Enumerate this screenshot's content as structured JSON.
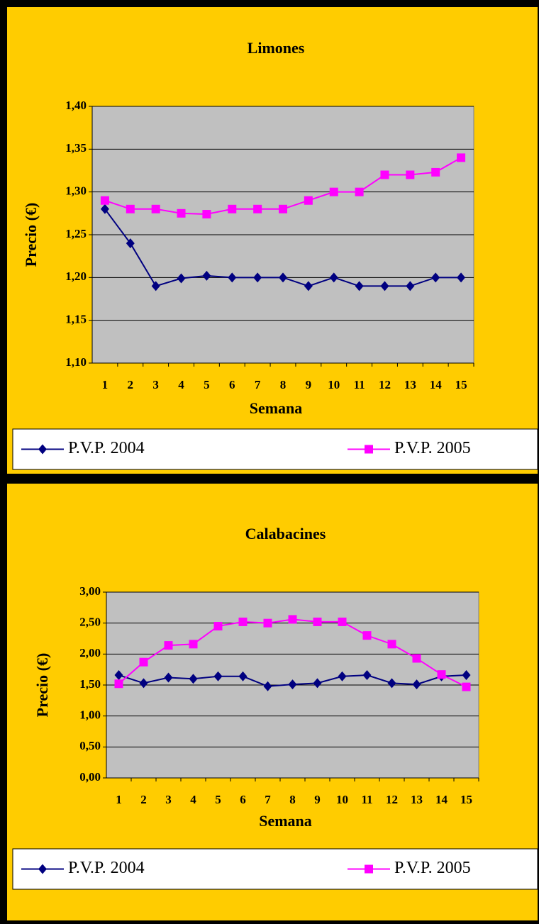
{
  "chart_data": [
    {
      "type": "line",
      "title": "Limones",
      "x_label": "Semana",
      "y_label": "Precio (€)",
      "categories": [
        "1",
        "2",
        "3",
        "4",
        "5",
        "6",
        "7",
        "8",
        "9",
        "10",
        "11",
        "12",
        "13",
        "14",
        "15"
      ],
      "series": [
        {
          "name": "P.V.P. 2004",
          "color": "#000080",
          "marker": "diamond",
          "values": [
            1.28,
            1.24,
            1.19,
            1.199,
            1.202,
            1.2,
            1.2,
            1.2,
            1.19,
            1.2,
            1.19,
            1.19,
            1.19,
            1.2,
            1.2
          ]
        },
        {
          "name": "P.V.P. 2005",
          "color": "#FF00FF",
          "marker": "square",
          "values": [
            1.29,
            1.28,
            1.28,
            1.275,
            1.274,
            1.28,
            1.28,
            1.28,
            1.29,
            1.3,
            1.3,
            1.32,
            1.32,
            1.323,
            1.34
          ]
        }
      ],
      "ylim": [
        1.1,
        1.4
      ],
      "yticks": [
        {
          "value": 1.1,
          "label": "1,10"
        },
        {
          "value": 1.15,
          "label": "1,15"
        },
        {
          "value": 1.2,
          "label": "1,20"
        },
        {
          "value": 1.25,
          "label": "1,25"
        },
        {
          "value": 1.3,
          "label": "1,30"
        },
        {
          "value": 1.35,
          "label": "1,35"
        },
        {
          "value": 1.4,
          "label": "1,40"
        }
      ],
      "grid": true,
      "legend": "bottom"
    },
    {
      "type": "line",
      "title": "Calabacines",
      "x_label": "Semana",
      "y_label": "Precio (€)",
      "categories": [
        "1",
        "2",
        "3",
        "4",
        "5",
        "6",
        "7",
        "8",
        "9",
        "10",
        "11",
        "12",
        "13",
        "14",
        "15"
      ],
      "series": [
        {
          "name": "P.V.P. 2004",
          "color": "#000080",
          "marker": "diamond",
          "values": [
            1.66,
            1.53,
            1.62,
            1.6,
            1.64,
            1.64,
            1.48,
            1.51,
            1.53,
            1.64,
            1.66,
            1.53,
            1.51,
            1.64,
            1.66
          ]
        },
        {
          "name": "P.V.P. 2005",
          "color": "#FF00FF",
          "marker": "square",
          "values": [
            1.52,
            1.87,
            2.14,
            2.16,
            2.45,
            2.52,
            2.5,
            2.56,
            2.52,
            2.52,
            2.3,
            2.16,
            1.93,
            1.67,
            1.47
          ]
        }
      ],
      "ylim": [
        0,
        3
      ],
      "yticks": [
        {
          "value": 0,
          "label": "0,00"
        },
        {
          "value": 0.5,
          "label": "0,50"
        },
        {
          "value": 1,
          "label": "1,00"
        },
        {
          "value": 1.5,
          "label": "1,50"
        },
        {
          "value": 2,
          "label": "2,00"
        },
        {
          "value": 2.5,
          "label": "2,50"
        },
        {
          "value": 3,
          "label": "3,00"
        }
      ],
      "grid": true,
      "legend": "bottom"
    }
  ]
}
